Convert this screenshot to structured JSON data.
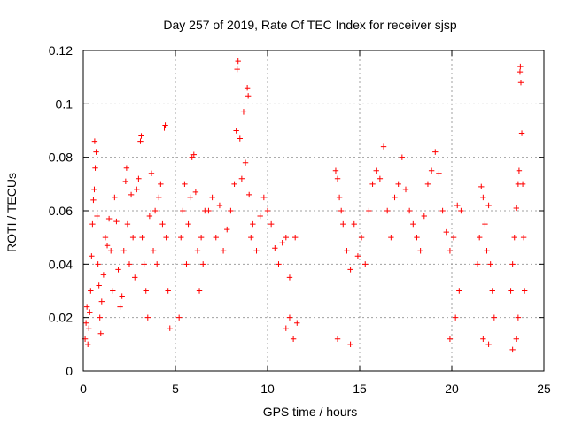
{
  "chart_data": {
    "type": "scatter",
    "title": "Day 257 of 2019, Rate Of TEC Index for receiver sjsp",
    "xlabel": "GPS time / hours",
    "ylabel": "ROTI / TECUs",
    "xlim": [
      0,
      25
    ],
    "ylim": [
      0,
      0.12
    ],
    "xticks": [
      0,
      5,
      10,
      15,
      20,
      25
    ],
    "xtick_labels": [
      "0",
      "5",
      "10",
      "15",
      "20",
      "25"
    ],
    "yticks": [
      0,
      0.02,
      0.04,
      0.06,
      0.08,
      0.1,
      0.12
    ],
    "ytick_labels": [
      "0",
      "0.02",
      "0.04",
      "0.06",
      "0.08",
      "0.1",
      "0.12"
    ],
    "grid": true,
    "marker": "plus",
    "color": "#ff0000",
    "series": [
      {
        "points": [
          [
            0.1,
            0.012
          ],
          [
            0.15,
            0.018
          ],
          [
            0.2,
            0.024
          ],
          [
            0.25,
            0.01
          ],
          [
            0.3,
            0.016
          ],
          [
            0.35,
            0.022
          ],
          [
            0.4,
            0.03
          ],
          [
            0.45,
            0.043
          ],
          [
            0.5,
            0.055
          ],
          [
            0.55,
            0.064
          ],
          [
            0.6,
            0.068
          ],
          [
            0.65,
            0.076
          ],
          [
            0.7,
            0.082
          ],
          [
            0.62,
            0.086
          ],
          [
            0.75,
            0.058
          ],
          [
            0.8,
            0.04
          ],
          [
            0.85,
            0.032
          ],
          [
            0.9,
            0.02
          ],
          [
            0.95,
            0.014
          ],
          [
            1.0,
            0.026
          ],
          [
            1.1,
            0.036
          ],
          [
            1.2,
            0.05
          ],
          [
            1.3,
            0.047
          ],
          [
            1.4,
            0.057
          ],
          [
            1.5,
            0.045
          ],
          [
            1.6,
            0.03
          ],
          [
            1.7,
            0.065
          ],
          [
            1.8,
            0.056
          ],
          [
            1.9,
            0.038
          ],
          [
            2.0,
            0.024
          ],
          [
            2.1,
            0.028
          ],
          [
            2.2,
            0.045
          ],
          [
            2.3,
            0.071
          ],
          [
            2.35,
            0.076
          ],
          [
            2.4,
            0.055
          ],
          [
            2.5,
            0.04
          ],
          [
            2.6,
            0.066
          ],
          [
            2.7,
            0.05
          ],
          [
            2.8,
            0.035
          ],
          [
            2.9,
            0.068
          ],
          [
            3.0,
            0.072
          ],
          [
            3.1,
            0.086
          ],
          [
            3.15,
            0.088
          ],
          [
            3.2,
            0.05
          ],
          [
            3.3,
            0.04
          ],
          [
            3.4,
            0.03
          ],
          [
            3.5,
            0.02
          ],
          [
            3.6,
            0.058
          ],
          [
            3.7,
            0.074
          ],
          [
            3.8,
            0.045
          ],
          [
            3.9,
            0.06
          ],
          [
            4.0,
            0.04
          ],
          [
            4.1,
            0.065
          ],
          [
            4.2,
            0.07
          ],
          [
            4.3,
            0.055
          ],
          [
            4.4,
            0.091
          ],
          [
            4.45,
            0.092
          ],
          [
            4.5,
            0.05
          ],
          [
            4.6,
            0.03
          ],
          [
            4.7,
            0.016
          ],
          [
            5.2,
            0.02
          ],
          [
            5.3,
            0.05
          ],
          [
            5.4,
            0.06
          ],
          [
            5.5,
            0.07
          ],
          [
            5.6,
            0.04
          ],
          [
            5.7,
            0.055
          ],
          [
            5.8,
            0.065
          ],
          [
            5.9,
            0.08
          ],
          [
            6.0,
            0.081
          ],
          [
            6.1,
            0.067
          ],
          [
            6.2,
            0.045
          ],
          [
            6.3,
            0.03
          ],
          [
            6.4,
            0.05
          ],
          [
            6.5,
            0.04
          ],
          [
            6.6,
            0.06
          ],
          [
            6.8,
            0.06
          ],
          [
            7.0,
            0.065
          ],
          [
            7.2,
            0.05
          ],
          [
            7.4,
            0.062
          ],
          [
            7.6,
            0.045
          ],
          [
            7.8,
            0.053
          ],
          [
            8.0,
            0.06
          ],
          [
            8.2,
            0.07
          ],
          [
            8.3,
            0.09
          ],
          [
            8.35,
            0.113
          ],
          [
            8.4,
            0.116
          ],
          [
            8.5,
            0.087
          ],
          [
            8.6,
            0.072
          ],
          [
            8.7,
            0.097
          ],
          [
            8.8,
            0.078
          ],
          [
            8.9,
            0.106
          ],
          [
            8.95,
            0.103
          ],
          [
            9.0,
            0.066
          ],
          [
            9.1,
            0.05
          ],
          [
            9.2,
            0.055
          ],
          [
            9.4,
            0.045
          ],
          [
            9.6,
            0.058
          ],
          [
            9.8,
            0.065
          ],
          [
            10.0,
            0.06
          ],
          [
            10.2,
            0.055
          ],
          [
            10.4,
            0.046
          ],
          [
            10.6,
            0.04
          ],
          [
            10.8,
            0.048
          ],
          [
            11.0,
            0.05
          ],
          [
            11.2,
            0.035
          ],
          [
            11.5,
            0.05
          ],
          [
            11.2,
            0.02
          ],
          [
            11.4,
            0.012
          ],
          [
            11.6,
            0.018
          ],
          [
            11.0,
            0.016
          ],
          [
            13.7,
            0.075
          ],
          [
            13.8,
            0.072
          ],
          [
            13.9,
            0.065
          ],
          [
            14.0,
            0.06
          ],
          [
            14.1,
            0.055
          ],
          [
            14.3,
            0.045
          ],
          [
            14.5,
            0.038
          ],
          [
            14.7,
            0.055
          ],
          [
            14.9,
            0.043
          ],
          [
            15.1,
            0.05
          ],
          [
            15.3,
            0.04
          ],
          [
            15.5,
            0.06
          ],
          [
            15.7,
            0.07
          ],
          [
            15.9,
            0.075
          ],
          [
            16.1,
            0.072
          ],
          [
            16.3,
            0.084
          ],
          [
            16.5,
            0.06
          ],
          [
            16.7,
            0.05
          ],
          [
            16.9,
            0.065
          ],
          [
            17.1,
            0.07
          ],
          [
            17.3,
            0.08
          ],
          [
            17.5,
            0.068
          ],
          [
            17.7,
            0.06
          ],
          [
            17.9,
            0.055
          ],
          [
            18.1,
            0.05
          ],
          [
            18.3,
            0.045
          ],
          [
            18.5,
            0.058
          ],
          [
            18.7,
            0.07
          ],
          [
            18.9,
            0.075
          ],
          [
            19.1,
            0.082
          ],
          [
            19.3,
            0.074
          ],
          [
            19.5,
            0.06
          ],
          [
            19.7,
            0.052
          ],
          [
            19.9,
            0.045
          ],
          [
            20.1,
            0.05
          ],
          [
            20.3,
            0.062
          ],
          [
            20.5,
            0.06
          ],
          [
            20.4,
            0.03
          ],
          [
            20.2,
            0.02
          ],
          [
            19.9,
            0.012
          ],
          [
            21.4,
            0.04
          ],
          [
            21.5,
            0.05
          ],
          [
            21.6,
            0.069
          ],
          [
            21.7,
            0.065
          ],
          [
            21.8,
            0.055
          ],
          [
            21.9,
            0.045
          ],
          [
            22.0,
            0.062
          ],
          [
            22.1,
            0.04
          ],
          [
            22.2,
            0.03
          ],
          [
            22.3,
            0.02
          ],
          [
            23.2,
            0.03
          ],
          [
            23.3,
            0.04
          ],
          [
            23.4,
            0.05
          ],
          [
            23.5,
            0.061
          ],
          [
            23.6,
            0.07
          ],
          [
            23.65,
            0.075
          ],
          [
            23.7,
            0.112
          ],
          [
            23.72,
            0.114
          ],
          [
            23.75,
            0.108
          ],
          [
            23.8,
            0.089
          ],
          [
            23.85,
            0.07
          ],
          [
            23.9,
            0.05
          ],
          [
            23.95,
            0.03
          ],
          [
            23.6,
            0.02
          ],
          [
            23.5,
            0.012
          ],
          [
            23.3,
            0.008
          ],
          [
            22.0,
            0.01
          ],
          [
            21.7,
            0.012
          ],
          [
            13.8,
            0.012
          ],
          [
            14.5,
            0.01
          ]
        ]
      }
    ]
  }
}
